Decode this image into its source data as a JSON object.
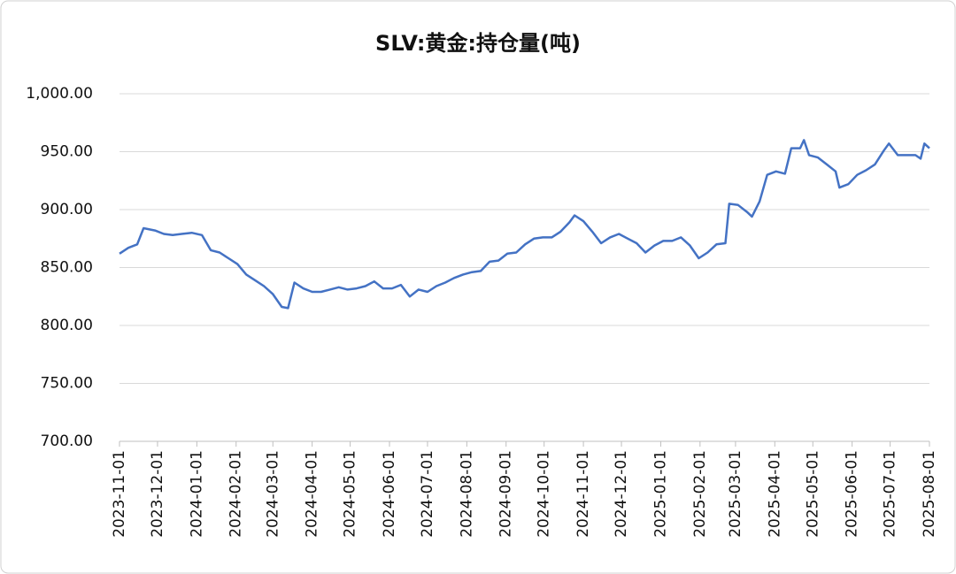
{
  "chart_data": {
    "type": "line",
    "title": "SLV:黄金:持仓量(吨)",
    "x": [
      "2023-11-01",
      "2023-11-08",
      "2023-11-15",
      "2023-11-20",
      "2023-11-29",
      "2023-12-06",
      "2023-12-13",
      "2023-12-20",
      "2023-12-28",
      "2024-01-05",
      "2024-01-12",
      "2024-01-19",
      "2024-01-26",
      "2024-02-02",
      "2024-02-09",
      "2024-02-16",
      "2024-02-23",
      "2024-03-01",
      "2024-03-08",
      "2024-03-13",
      "2024-03-18",
      "2024-03-25",
      "2024-04-01",
      "2024-04-08",
      "2024-04-15",
      "2024-04-22",
      "2024-04-29",
      "2024-05-06",
      "2024-05-13",
      "2024-05-20",
      "2024-05-27",
      "2024-06-03",
      "2024-06-10",
      "2024-06-17",
      "2024-06-24",
      "2024-07-01",
      "2024-07-08",
      "2024-07-15",
      "2024-07-22",
      "2024-07-29",
      "2024-08-05",
      "2024-08-12",
      "2024-08-19",
      "2024-08-26",
      "2024-09-02",
      "2024-09-09",
      "2024-09-16",
      "2024-09-23",
      "2024-09-30",
      "2024-10-07",
      "2024-10-14",
      "2024-10-21",
      "2024-10-25",
      "2024-11-01",
      "2024-11-08",
      "2024-11-15",
      "2024-11-22",
      "2024-11-29",
      "2024-12-06",
      "2024-12-13",
      "2024-12-20",
      "2024-12-27",
      "2025-01-03",
      "2025-01-10",
      "2025-01-17",
      "2025-01-24",
      "2025-01-31",
      "2025-02-07",
      "2025-02-14",
      "2025-02-21",
      "2025-02-24",
      "2025-03-03",
      "2025-03-10",
      "2025-03-14",
      "2025-03-20",
      "2025-03-26",
      "2025-04-02",
      "2025-04-09",
      "2025-04-14",
      "2025-04-21",
      "2025-04-24",
      "2025-04-28",
      "2025-05-05",
      "2025-05-12",
      "2025-05-19",
      "2025-05-22",
      "2025-05-29",
      "2025-06-05",
      "2025-06-12",
      "2025-06-19",
      "2025-06-26",
      "2025-06-30",
      "2025-07-07",
      "2025-07-14",
      "2025-07-21",
      "2025-07-25",
      "2025-07-28",
      "2025-08-01"
    ],
    "values": [
      862,
      867,
      870,
      884,
      882,
      879,
      878,
      879,
      880,
      878,
      865,
      863,
      858,
      853,
      844,
      839,
      834,
      827,
      816,
      815,
      837,
      832,
      829,
      829,
      831,
      833,
      831,
      832,
      834,
      838,
      832,
      832,
      835,
      825,
      831,
      829,
      834,
      837,
      841,
      844,
      846,
      847,
      855,
      856,
      862,
      863,
      870,
      875,
      876,
      876,
      881,
      889,
      895,
      890,
      881,
      871,
      876,
      879,
      875,
      871,
      863,
      869,
      873,
      873,
      876,
      869,
      858,
      863,
      870,
      871,
      905,
      904,
      898,
      894,
      907,
      930,
      933,
      931,
      953,
      953,
      960,
      947,
      945,
      939,
      933,
      919,
      922,
      930,
      934,
      939,
      951,
      957,
      947,
      947,
      947,
      944,
      957,
      953
    ],
    "color": "#4472c4",
    "xlim": [
      "2023-11-01",
      "2025-08-01"
    ],
    "xticks": [
      "2023-11-01",
      "2023-12-01",
      "2024-01-01",
      "2024-02-01",
      "2024-03-01",
      "2024-04-01",
      "2024-05-01",
      "2024-06-01",
      "2024-07-01",
      "2024-08-01",
      "2024-09-01",
      "2024-10-01",
      "2024-11-01",
      "2024-12-01",
      "2025-01-01",
      "2025-02-01",
      "2025-03-01",
      "2025-04-01",
      "2025-05-01",
      "2025-06-01",
      "2025-07-01",
      "2025-08-01"
    ],
    "ylim": [
      700,
      1000
    ],
    "yticks": [
      {
        "value": 700,
        "label": "700.00"
      },
      {
        "value": 750,
        "label": "750.00"
      },
      {
        "value": 800,
        "label": "800.00"
      },
      {
        "value": 850,
        "label": "850.00"
      },
      {
        "value": 900,
        "label": "900.00"
      },
      {
        "value": 950,
        "label": "950.00"
      },
      {
        "value": 1000,
        "label": "1,000.00"
      }
    ],
    "grid": true
  }
}
